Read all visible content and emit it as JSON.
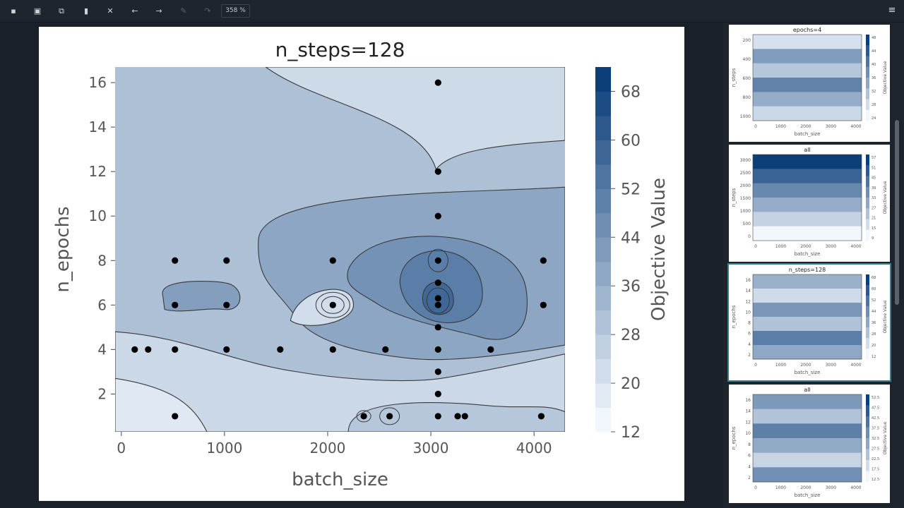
{
  "toolbar": {
    "buttons": [
      {
        "icon": "save-icon",
        "glyph": "▪",
        "enabled": true
      },
      {
        "icon": "save-all-icon",
        "glyph": "▣",
        "enabled": true
      },
      {
        "icon": "copy-icon",
        "glyph": "⧉",
        "enabled": true
      },
      {
        "icon": "delete-icon",
        "glyph": "▮",
        "enabled": true
      },
      {
        "icon": "clear-icon",
        "glyph": "✕",
        "enabled": true
      },
      {
        "icon": "back-arrow-icon",
        "glyph": "←",
        "enabled": true
      },
      {
        "icon": "forward-arrow-icon",
        "glyph": "→",
        "enabled": true
      },
      {
        "icon": "brush-icon",
        "glyph": "✎",
        "enabled": false
      },
      {
        "icon": "redo-icon",
        "glyph": "↷",
        "enabled": false
      }
    ],
    "zoom": "358 %",
    "menu_icon": "hamburger-menu-icon"
  },
  "main_plot": {
    "title": "n_steps=128",
    "xlabel": "batch_size",
    "ylabel": "n_epochs",
    "xticks": [
      "0",
      "1000",
      "2000",
      "3000",
      "4000"
    ],
    "yticks": [
      "2",
      "4",
      "6",
      "8",
      "10",
      "12",
      "14",
      "16"
    ],
    "colorbar_label": "Objective Value",
    "colorbar_ticks": [
      "12",
      "20",
      "28",
      "36",
      "44",
      "52",
      "60",
      "68"
    ]
  },
  "thumbnails": [
    {
      "title": "epochs=4",
      "xlabel": "batch_size",
      "ylabel": "n_steps",
      "xticks": [
        "0",
        "1000",
        "2000",
        "3000",
        "4000"
      ],
      "yticks": [
        "200",
        "400",
        "600",
        "800",
        "1000"
      ],
      "cbar_label": "Objective Value",
      "cbar_ticks": [
        "48",
        "44",
        "40",
        "36",
        "32",
        "28",
        "24"
      ],
      "selected": false
    },
    {
      "title": "all",
      "xlabel": "batch_size",
      "ylabel": "n_steps",
      "xticks": [
        "0",
        "1000",
        "2000",
        "3000",
        "4000"
      ],
      "yticks": [
        "3000",
        "2500",
        "2000",
        "1500",
        "1000",
        "500",
        "0"
      ],
      "cbar_label": "Objective Value",
      "cbar_ticks": [
        "57",
        "51",
        "45",
        "39",
        "33",
        "27",
        "21",
        "15",
        "9"
      ],
      "selected": false
    },
    {
      "title": "n_steps=128",
      "xlabel": "batch_size",
      "ylabel": "n_epochs",
      "xticks": [
        "0",
        "1000",
        "2000",
        "3000",
        "4000"
      ],
      "yticks": [
        "16",
        "14",
        "12",
        "10",
        "8",
        "6",
        "4",
        "2"
      ],
      "cbar_label": "Objective Value",
      "cbar_ticks": [
        "68",
        "60",
        "52",
        "44",
        "36",
        "28",
        "20",
        "12"
      ],
      "selected": true
    },
    {
      "title": "all",
      "xlabel": "batch_size",
      "ylabel": "n_epochs",
      "xticks": [
        "0",
        "1000",
        "2000",
        "3000",
        "4000"
      ],
      "yticks": [
        "16",
        "14",
        "12",
        "10",
        "8",
        "6",
        "4",
        "2"
      ],
      "cbar_label": "Objective Value",
      "cbar_ticks": [
        "52.5",
        "47.5",
        "42.5",
        "37.5",
        "32.5",
        "27.5",
        "22.5",
        "17.5",
        "12.5"
      ],
      "selected": false
    }
  ],
  "chart_data": {
    "type": "scatter",
    "title": "n_steps=128",
    "xlabel": "batch_size",
    "ylabel": "n_epochs",
    "xlim": [
      -60,
      4300
    ],
    "ylim": [
      0.3,
      16.7
    ],
    "colorbar": {
      "label": "Objective Value",
      "range": [
        12,
        72
      ]
    },
    "points": [
      [
        130,
        4
      ],
      [
        260,
        4
      ],
      [
        520,
        4
      ],
      [
        1020,
        4
      ],
      [
        1540,
        4
      ],
      [
        2050,
        4
      ],
      [
        2560,
        4
      ],
      [
        3070,
        4
      ],
      [
        3580,
        4
      ],
      [
        520,
        6
      ],
      [
        1020,
        6
      ],
      [
        2050,
        6
      ],
      [
        3070,
        6
      ],
      [
        4090,
        6
      ],
      [
        520,
        8
      ],
      [
        1020,
        8
      ],
      [
        2050,
        8
      ],
      [
        3070,
        8
      ],
      [
        4090,
        8
      ],
      [
        520,
        1
      ],
      [
        2350,
        1
      ],
      [
        2600,
        1
      ],
      [
        3070,
        1
      ],
      [
        3260,
        1
      ],
      [
        3330,
        1
      ],
      [
        4070,
        1
      ],
      [
        3070,
        2
      ],
      [
        3070,
        3
      ],
      [
        3070,
        5
      ],
      [
        3070,
        6.3
      ],
      [
        3070,
        7
      ],
      [
        3070,
        10
      ],
      [
        3070,
        12
      ],
      [
        3070,
        16
      ]
    ],
    "colors": {
      "low": "#f2f7fd",
      "high": "#0c3f7a",
      "contour": "#3a3a3a"
    }
  }
}
